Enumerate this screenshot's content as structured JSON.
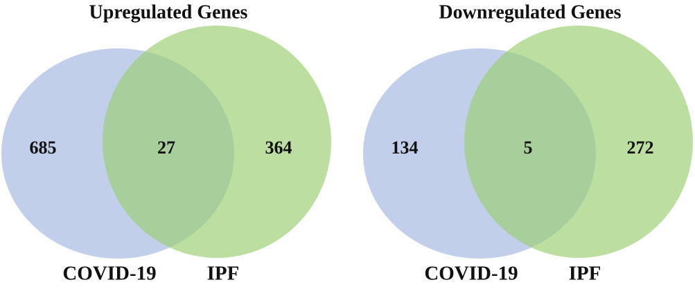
{
  "venns": [
    {
      "title": "Upregulated Genes",
      "sets": [
        "COVID-19",
        "IPF"
      ],
      "regions": [
        685,
        27,
        364
      ]
    },
    {
      "title": "Downregulated Genes",
      "sets": [
        "COVID-19",
        "IPF"
      ],
      "regions": [
        134,
        5,
        272
      ]
    }
  ]
}
